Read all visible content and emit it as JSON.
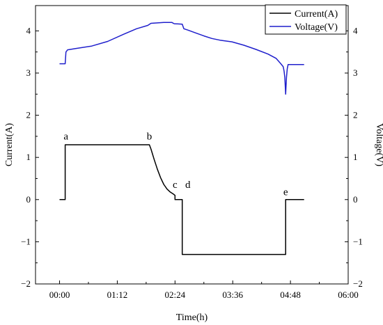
{
  "chart_data": {
    "type": "line",
    "xlabel": "Time(h)",
    "ylabel_left": "Current(A)",
    "ylabel_right": "Voltage(V)",
    "xlim_minutes": [
      -30,
      360
    ],
    "ylim": [
      -2,
      4.6
    ],
    "x_ticks": [
      {
        "minutes": 0,
        "label": "00:00"
      },
      {
        "minutes": 72,
        "label": "01:12"
      },
      {
        "minutes": 144,
        "label": "02:24"
      },
      {
        "minutes": 216,
        "label": "03:36"
      },
      {
        "minutes": 288,
        "label": "04:48"
      },
      {
        "minutes": 360,
        "label": "06:00"
      }
    ],
    "y_ticks": [
      {
        "value": 4,
        "label": "4"
      },
      {
        "value": 3,
        "label": "3"
      },
      {
        "value": 2,
        "label": "2"
      },
      {
        "value": 1,
        "label": "1"
      },
      {
        "value": 0,
        "label": "0"
      },
      {
        "value": -1,
        "label": "−1"
      },
      {
        "value": -2,
        "label": "−2"
      }
    ],
    "legend_position": "top-right",
    "series": [
      {
        "name": "Current(A)",
        "color": "#000000",
        "points": [
          [
            0,
            0
          ],
          [
            7,
            0
          ],
          [
            7,
            1.3
          ],
          [
            16,
            1.3
          ],
          [
            40,
            1.3
          ],
          [
            80,
            1.3
          ],
          [
            112,
            1.3
          ],
          [
            114,
            1.2
          ],
          [
            118,
            0.95
          ],
          [
            122,
            0.72
          ],
          [
            126,
            0.52
          ],
          [
            130,
            0.36
          ],
          [
            134,
            0.25
          ],
          [
            138,
            0.18
          ],
          [
            142,
            0.13
          ],
          [
            144,
            0.1
          ],
          [
            144,
            0
          ],
          [
            153,
            0
          ],
          [
            153,
            -1.3
          ],
          [
            200,
            -1.3
          ],
          [
            260,
            -1.3
          ],
          [
            282,
            -1.3
          ],
          [
            282,
            0
          ],
          [
            296,
            0
          ],
          [
            305,
            0
          ]
        ]
      },
      {
        "name": "Voltage(V)",
        "color": "#1f1fcc",
        "points": [
          [
            0,
            3.22
          ],
          [
            7,
            3.22
          ],
          [
            8,
            3.5
          ],
          [
            10,
            3.55
          ],
          [
            20,
            3.58
          ],
          [
            40,
            3.64
          ],
          [
            60,
            3.75
          ],
          [
            80,
            3.92
          ],
          [
            96,
            4.05
          ],
          [
            110,
            4.13
          ],
          [
            114,
            4.18
          ],
          [
            130,
            4.2
          ],
          [
            140,
            4.2
          ],
          [
            143,
            4.17
          ],
          [
            153,
            4.16
          ],
          [
            155,
            4.05
          ],
          [
            160,
            4.02
          ],
          [
            170,
            3.95
          ],
          [
            180,
            3.88
          ],
          [
            190,
            3.82
          ],
          [
            200,
            3.78
          ],
          [
            215,
            3.74
          ],
          [
            230,
            3.66
          ],
          [
            245,
            3.56
          ],
          [
            260,
            3.45
          ],
          [
            270,
            3.35
          ],
          [
            276,
            3.22
          ],
          [
            279,
            3.15
          ],
          [
            280,
            3.05
          ],
          [
            281,
            2.9
          ],
          [
            282,
            2.5
          ],
          [
            283,
            2.9
          ],
          [
            284,
            3.1
          ],
          [
            285,
            3.2
          ],
          [
            305,
            3.2
          ]
        ]
      }
    ],
    "annotations": [
      {
        "text": "a",
        "x": 8,
        "y": 1.42
      },
      {
        "text": "b",
        "x": 112,
        "y": 1.42
      },
      {
        "text": "c",
        "x": 144,
        "y": 0.28
      },
      {
        "text": "d",
        "x": 160,
        "y": 0.28
      },
      {
        "text": "e",
        "x": 282,
        "y": 0.1
      }
    ]
  }
}
